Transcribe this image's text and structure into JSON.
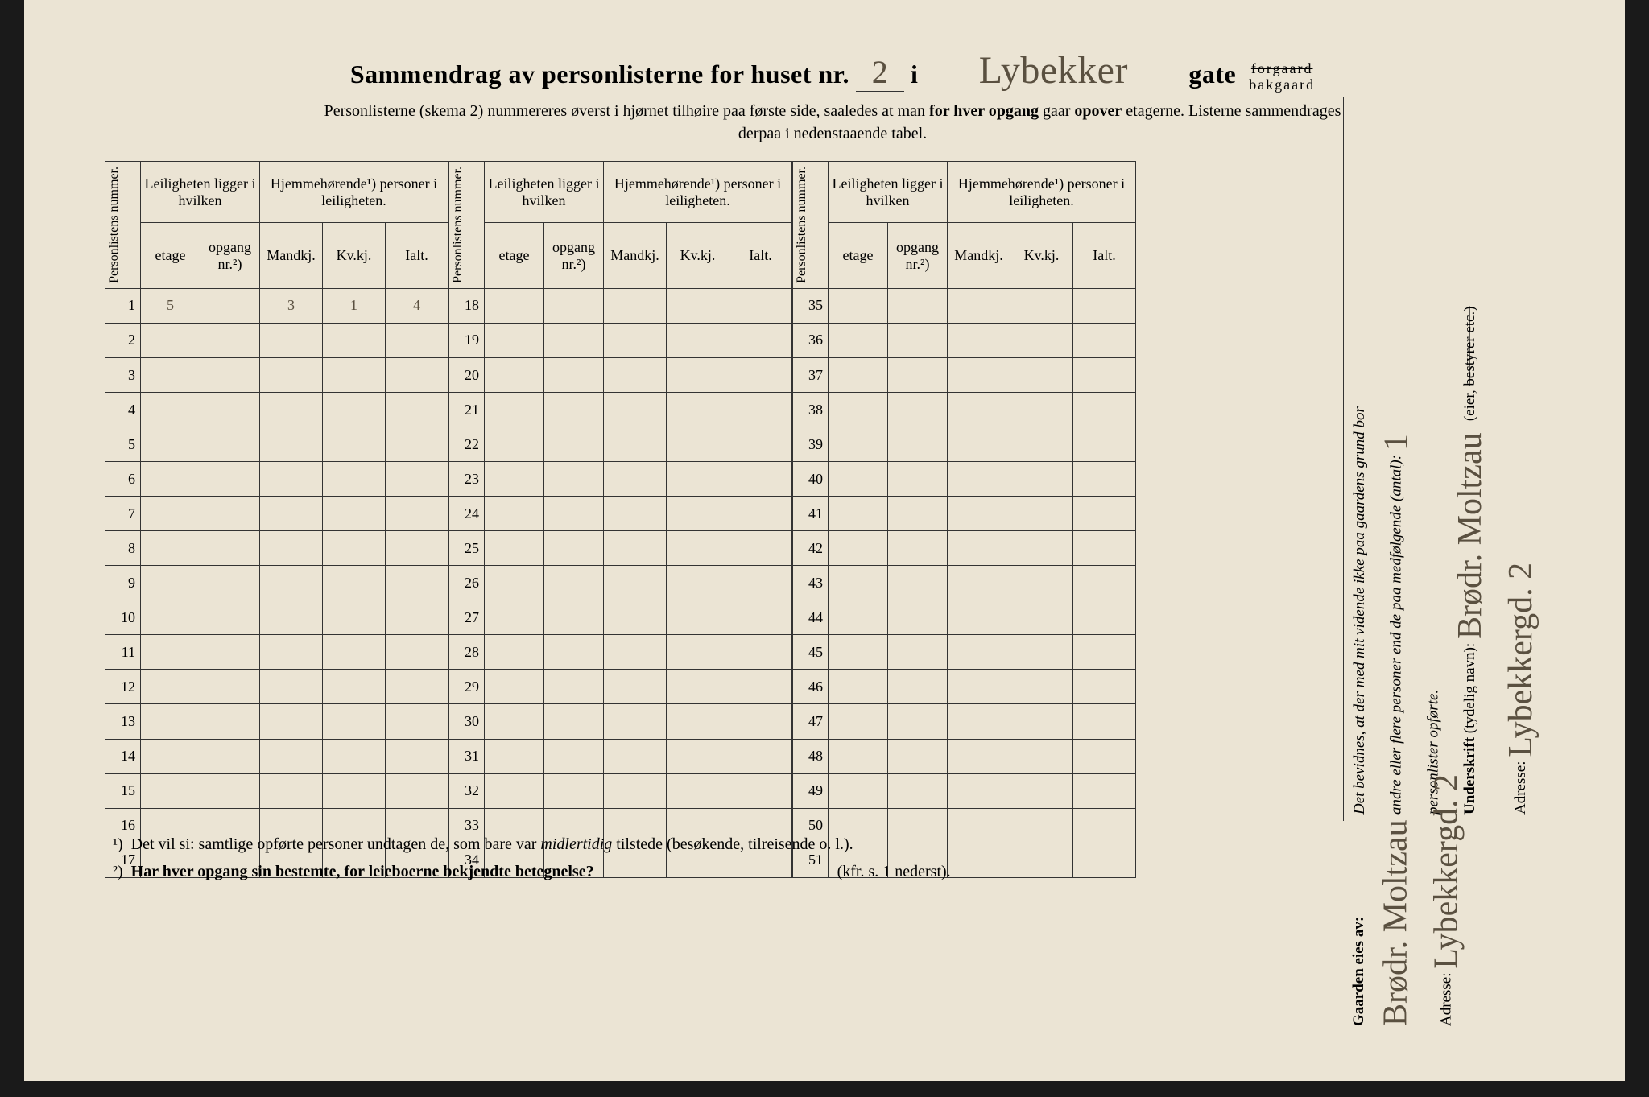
{
  "header": {
    "title_prefix": "Sammendrag av personlisterne for huset nr.",
    "house_nr": "2",
    "i": "i",
    "street_name": "Lybekker",
    "gate": "gate",
    "forgaard": "forgaard",
    "bakgaard": "bakgaard",
    "sub1": "Personlisterne (skema 2) nummereres øverst i hjørnet tilhøire paa første side, saaledes at man",
    "sub1b": "for hver opgang",
    "sub1c": "gaar",
    "sub1d": "opover",
    "sub1e": "etagerne.   Listerne sammendrages",
    "sub2": "derpaa i nedenstaaende tabel."
  },
  "columns": {
    "personlistens_nummer": "Personlistens nummer.",
    "leiligheten": "Leiligheten ligger i hvilken",
    "hjemme": "Hjemmehørende¹) personer i leiligheten.",
    "etage": "etage",
    "opgang": "opgang nr.²)",
    "mandkj": "Mandkj.",
    "kvkj": "Kv.kj.",
    "ialt": "Ialt."
  },
  "blocks": [
    {
      "start": 1,
      "end": 17,
      "rows": [
        {
          "n": 1,
          "etage": "5",
          "opg": "",
          "m": "3",
          "k": "1",
          "i": "4"
        },
        {
          "n": 2
        },
        {
          "n": 3
        },
        {
          "n": 4
        },
        {
          "n": 5
        },
        {
          "n": 6
        },
        {
          "n": 7
        },
        {
          "n": 8
        },
        {
          "n": 9
        },
        {
          "n": 10
        },
        {
          "n": 11
        },
        {
          "n": 12
        },
        {
          "n": 13
        },
        {
          "n": 14
        },
        {
          "n": 15
        },
        {
          "n": 16
        },
        {
          "n": 17
        }
      ]
    },
    {
      "start": 18,
      "end": 34,
      "rows": [
        {
          "n": 18
        },
        {
          "n": 19
        },
        {
          "n": 20
        },
        {
          "n": 21
        },
        {
          "n": 22
        },
        {
          "n": 23
        },
        {
          "n": 24
        },
        {
          "n": 25
        },
        {
          "n": 26
        },
        {
          "n": 27
        },
        {
          "n": 28
        },
        {
          "n": 29
        },
        {
          "n": 30
        },
        {
          "n": 31
        },
        {
          "n": 32
        },
        {
          "n": 33
        },
        {
          "n": 34
        }
      ]
    },
    {
      "start": 35,
      "end": 51,
      "rows": [
        {
          "n": 35
        },
        {
          "n": 36
        },
        {
          "n": 37
        },
        {
          "n": 38
        },
        {
          "n": 39
        },
        {
          "n": 40
        },
        {
          "n": 41
        },
        {
          "n": 42
        },
        {
          "n": 43
        },
        {
          "n": 44
        },
        {
          "n": 45
        },
        {
          "n": 46
        },
        {
          "n": 47
        },
        {
          "n": 48
        },
        {
          "n": 49
        },
        {
          "n": 50
        },
        {
          "n": 51
        }
      ]
    }
  ],
  "footnotes": {
    "f1_label": "¹)",
    "f1": "Det vil si: samtlige opførte personer undtagen de, som bare var",
    "f1_em": "midlertidig",
    "f1b": "tilstede (besøkende, tilreisende o. l.).",
    "f2_label": "²)",
    "f2_bold": "Har hver opgang sin bestemte, for leieboerne bekjendte betegnelse?",
    "f2_suffix": "(kfr. s. 1 nederst)."
  },
  "side": {
    "bevidnes1": "Det bevidnes, at der med mit vidende ikke paa gaardens grund bor",
    "bevidnes2": "andre eller flere personer end de paa medfølgende (antal):",
    "antal": "1",
    "bevidnes3": "personlister opførte.",
    "underskrift_label": "Underskrift",
    "underskrift_note": "(tydelig navn):",
    "underskrift_value": "Brødr. Moltzau",
    "eier_label": "(eier,",
    "eier_strike": "bestyrer etc.)",
    "adresse_label": "Adresse:",
    "adresse_value": "Lybekkergd. 2"
  },
  "owner": {
    "label": "Gaarden eies av:",
    "name": "Brødr. Moltzau",
    "adresse_label": "Adresse:",
    "adresse_value": "Lybekkergd. 2"
  },
  "style": {
    "paper_bg": "#ebe4d4",
    "ink": "#333333",
    "handwriting": "#5a5040"
  }
}
